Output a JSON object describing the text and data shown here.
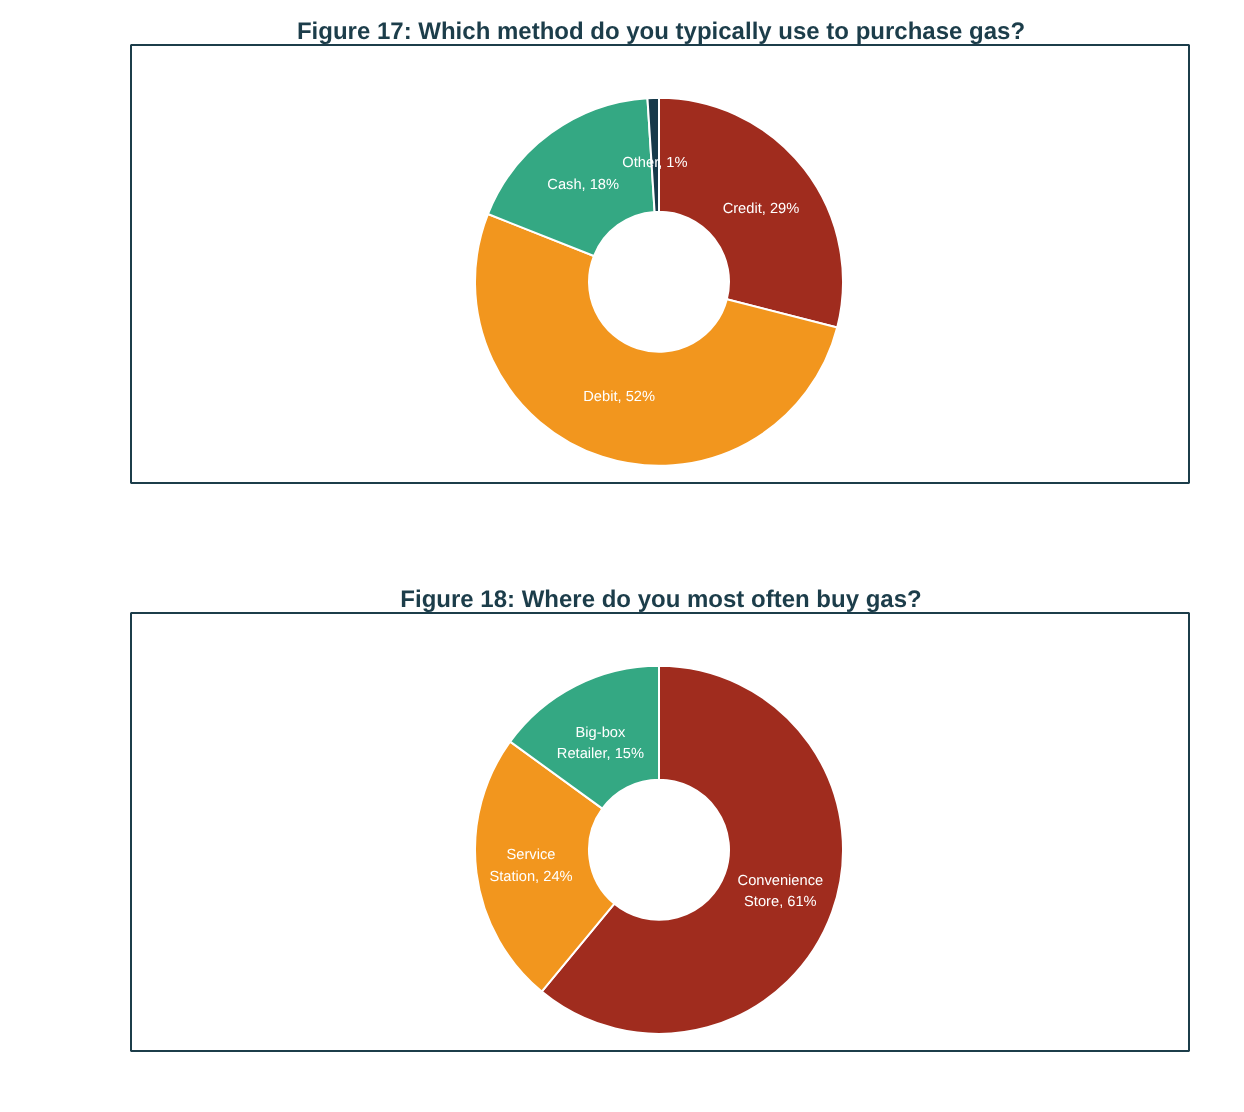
{
  "chart_data": [
    {
      "type": "donut",
      "title": "Figure 17: Which method do you typically use to purchase gas?",
      "categories": [
        "Credit",
        "Debit",
        "Cash",
        "Other"
      ],
      "values": [
        29,
        52,
        18,
        1
      ],
      "colors": [
        "#a02c1e",
        "#f2961e",
        "#34a883",
        "#163a4a"
      ],
      "value_labels": [
        "29%",
        "52%",
        "18%",
        "1%"
      ]
    },
    {
      "type": "donut",
      "title": "Figure 18: Where do you most often buy gas?",
      "categories": [
        "Convenience Store",
        "Service Station",
        "Big-box Retailer"
      ],
      "values": [
        61,
        24,
        15
      ],
      "colors": [
        "#a02c1e",
        "#f2961e",
        "#34a883"
      ],
      "value_labels": [
        "61%",
        "24%",
        "15%"
      ]
    }
  ]
}
